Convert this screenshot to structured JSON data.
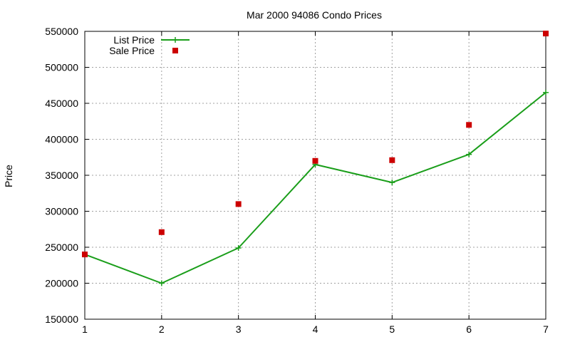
{
  "chart_data": {
    "type": "line",
    "title": "Mar 2000 94086 Condo Prices",
    "xlabel": "",
    "ylabel": "Price",
    "xlim": [
      1,
      7
    ],
    "ylim": [
      150000,
      550000
    ],
    "x_ticks": [
      "1",
      "2",
      "3",
      "4",
      "5",
      "6",
      "7"
    ],
    "y_ticks": [
      "150000",
      "200000",
      "250000",
      "300000",
      "350000",
      "400000",
      "450000",
      "500000",
      "550000"
    ],
    "grid": true,
    "legend_position": "top-left",
    "series": [
      {
        "name": "List Price",
        "style": "line-with-plus-markers",
        "color": "#1a9e1a",
        "x": [
          1,
          2,
          3,
          4,
          5,
          6,
          7
        ],
        "values": [
          240000,
          200000,
          249000,
          365000,
          340000,
          379000,
          465000
        ]
      },
      {
        "name": "Sale Price",
        "style": "square-markers",
        "color": "#cc0000",
        "x": [
          1,
          2,
          3,
          4,
          5,
          6,
          7
        ],
        "values": [
          240000,
          271000,
          310000,
          370000,
          371000,
          420000,
          547000
        ]
      }
    ]
  }
}
